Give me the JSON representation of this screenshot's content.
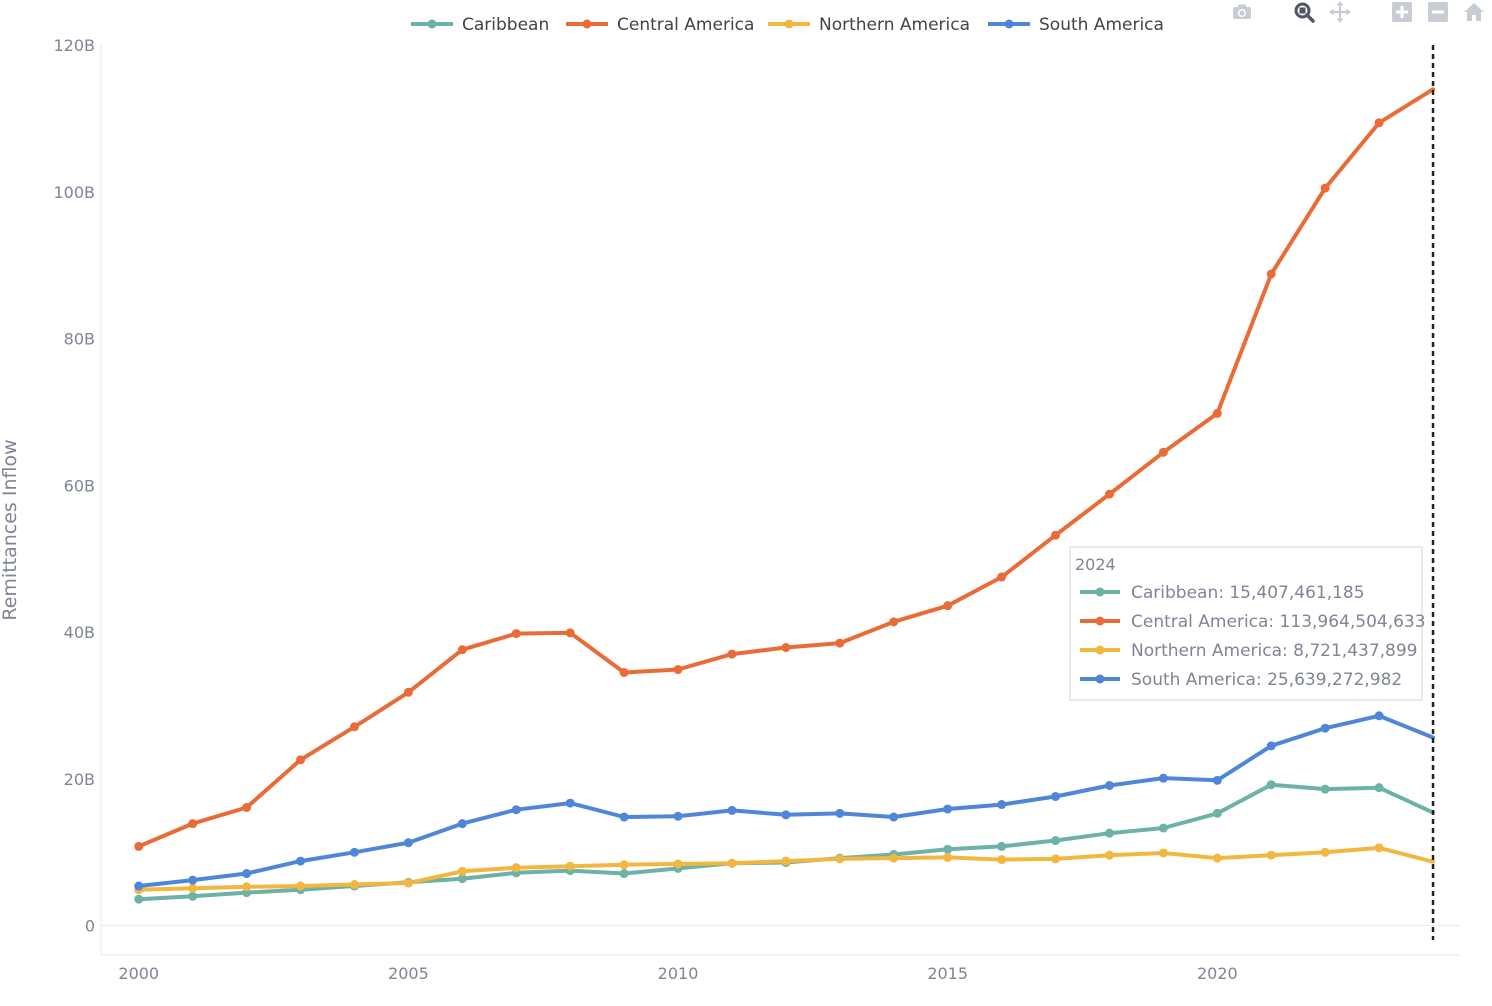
{
  "modebar": {
    "icons": [
      "camera-icon",
      "zoom-icon",
      "pan-icon",
      "zoom-in-icon",
      "zoom-out-icon",
      "home-icon"
    ]
  },
  "chart_data": {
    "type": "line",
    "title": "",
    "xlabel": "",
    "ylabel": "Remittances Inflow",
    "x": [
      2000,
      2001,
      2002,
      2003,
      2004,
      2005,
      2006,
      2007,
      2008,
      2009,
      2010,
      2011,
      2012,
      2013,
      2014,
      2015,
      2016,
      2017,
      2018,
      2019,
      2020,
      2021,
      2022,
      2023,
      2024
    ],
    "xlim": [
      1999.3,
      2024.5
    ],
    "ylim": [
      -4,
      120
    ],
    "x_ticks": [
      2000,
      2005,
      2010,
      2015,
      2020
    ],
    "y_ticks": [
      {
        "value": 0,
        "label": "0"
      },
      {
        "value": 20,
        "label": "20B"
      },
      {
        "value": 40,
        "label": "40B"
      },
      {
        "value": 60,
        "label": "60B"
      },
      {
        "value": 80,
        "label": "80B"
      },
      {
        "value": 100,
        "label": "100B"
      },
      {
        "value": 120,
        "label": "120B"
      }
    ],
    "y_units": "billions",
    "grid": false,
    "legend_position": "top-center",
    "series": [
      {
        "name": "Caribbean",
        "color": "#6cb2a6",
        "values": [
          3.6,
          4.0,
          4.5,
          4.9,
          5.4,
          5.9,
          6.4,
          7.2,
          7.5,
          7.1,
          7.8,
          8.5,
          8.6,
          9.2,
          9.7,
          10.4,
          10.8,
          11.6,
          12.6,
          13.3,
          15.3,
          19.2,
          18.6,
          18.8,
          15.4
        ]
      },
      {
        "name": "Central America",
        "color": "#e96c38",
        "values": [
          10.8,
          13.9,
          16.1,
          22.6,
          27.1,
          31.8,
          37.6,
          39.8,
          39.9,
          34.5,
          34.9,
          37.0,
          37.9,
          38.5,
          41.4,
          43.6,
          47.5,
          53.2,
          58.8,
          64.5,
          69.8,
          88.8,
          100.5,
          109.4,
          113.96
        ]
      },
      {
        "name": "Northern America",
        "color": "#f1b740",
        "values": [
          4.9,
          5.1,
          5.3,
          5.4,
          5.6,
          5.8,
          7.4,
          7.9,
          8.1,
          8.3,
          8.4,
          8.5,
          8.8,
          9.1,
          9.2,
          9.3,
          9.0,
          9.1,
          9.6,
          9.9,
          9.2,
          9.6,
          10.0,
          10.6,
          8.72
        ]
      },
      {
        "name": "South America",
        "color": "#4f86d8",
        "values": [
          5.4,
          6.2,
          7.1,
          8.8,
          10.0,
          11.3,
          13.9,
          15.8,
          16.7,
          14.8,
          14.9,
          15.7,
          15.1,
          15.3,
          14.8,
          15.9,
          16.5,
          17.6,
          19.1,
          20.1,
          19.8,
          24.5,
          26.9,
          28.6,
          25.64
        ]
      }
    ],
    "hover": {
      "x": 2024,
      "title": "2024",
      "lines": [
        "Caribbean: 15,407,461,185",
        "Central America: 113,964,504,633",
        "Northern America: 8,721,437,899",
        "South America: 25,639,272,982"
      ]
    }
  }
}
